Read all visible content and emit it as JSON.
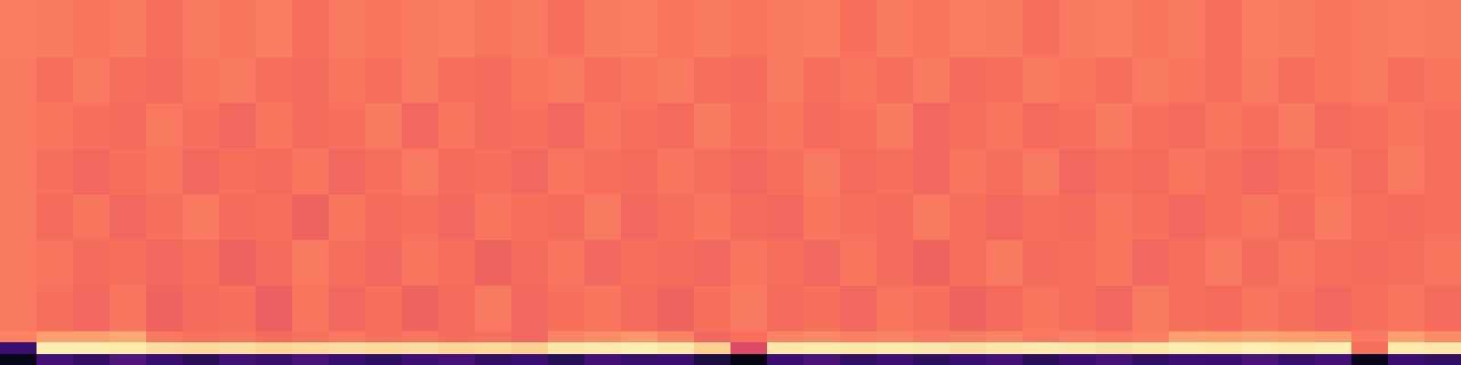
{
  "chart_data": {
    "type": "heatmap",
    "color": "magma",
    "tick_labels": false,
    "xlim": [
      0,
      40
    ],
    "ylim": [
      0,
      32
    ],
    "zlim": [
      0,
      1
    ],
    "y": [
      0,
      1,
      2,
      3,
      7,
      11,
      15,
      19,
      23,
      27,
      32
    ],
    "cells": [
      [
        0.04,
        0.22,
        0.18,
        0.25,
        0.2,
        0.16,
        0.22,
        0.19,
        0.24,
        0.2,
        0.17,
        0.21,
        0.23,
        0.18,
        0.2,
        0.15,
        0.22,
        0.19,
        0.2,
        0.12,
        0.03,
        0.2,
        0.24,
        0.18,
        0.21,
        0.17,
        0.2,
        0.22,
        0.16,
        0.2,
        0.23,
        0.18,
        0.21,
        0.2,
        0.24,
        0.19,
        0.22,
        0.05,
        0.2,
        0.18
      ],
      [
        0.2,
        0.97,
        0.97,
        0.96,
        0.93,
        0.92,
        0.93,
        0.91,
        0.92,
        0.93,
        0.92,
        0.93,
        0.91,
        0.92,
        0.9,
        0.95,
        0.96,
        0.97,
        0.95,
        0.9,
        0.6,
        0.95,
        0.96,
        0.95,
        0.96,
        0.95,
        0.94,
        0.95,
        0.96,
        0.95,
        0.94,
        0.95,
        0.97,
        0.96,
        0.97,
        0.96,
        0.97,
        0.7,
        0.96,
        0.95
      ],
      [
        0.74,
        0.8,
        0.8,
        0.82,
        0.72,
        0.7,
        0.71,
        0.69,
        0.7,
        0.72,
        0.7,
        0.71,
        0.69,
        0.7,
        0.68,
        0.74,
        0.76,
        0.78,
        0.74,
        0.68,
        0.7,
        0.74,
        0.75,
        0.73,
        0.74,
        0.72,
        0.73,
        0.74,
        0.72,
        0.73,
        0.72,
        0.73,
        0.8,
        0.8,
        0.81,
        0.8,
        0.79,
        0.72,
        0.8,
        0.76
      ],
      [
        0.72,
        0.7,
        0.68,
        0.71,
        0.67,
        0.69,
        0.7,
        0.66,
        0.71,
        0.68,
        0.7,
        0.67,
        0.69,
        0.72,
        0.68,
        0.7,
        0.71,
        0.69,
        0.67,
        0.7,
        0.72,
        0.69,
        0.7,
        0.68,
        0.71,
        0.7,
        0.67,
        0.69,
        0.71,
        0.7,
        0.68,
        0.72,
        0.7,
        0.69,
        0.71,
        0.7,
        0.68,
        0.7,
        0.71,
        0.69
      ],
      [
        0.72,
        0.71,
        0.69,
        0.7,
        0.68,
        0.7,
        0.67,
        0.69,
        0.72,
        0.7,
        0.68,
        0.71,
        0.7,
        0.67,
        0.69,
        0.71,
        0.68,
        0.7,
        0.69,
        0.68,
        0.71,
        0.7,
        0.68,
        0.71,
        0.69,
        0.67,
        0.7,
        0.72,
        0.69,
        0.7,
        0.71,
        0.68,
        0.7,
        0.72,
        0.69,
        0.71,
        0.7,
        0.69,
        0.7,
        0.71
      ],
      [
        0.72,
        0.69,
        0.71,
        0.68,
        0.7,
        0.72,
        0.69,
        0.7,
        0.67,
        0.71,
        0.69,
        0.7,
        0.68,
        0.71,
        0.7,
        0.69,
        0.72,
        0.68,
        0.7,
        0.71,
        0.69,
        0.68,
        0.71,
        0.7,
        0.69,
        0.72,
        0.7,
        0.68,
        0.7,
        0.69,
        0.71,
        0.7,
        0.68,
        0.7,
        0.71,
        0.69,
        0.72,
        0.7,
        0.69,
        0.7
      ],
      [
        0.72,
        0.7,
        0.68,
        0.7,
        0.71,
        0.68,
        0.7,
        0.69,
        0.71,
        0.68,
        0.7,
        0.72,
        0.69,
        0.7,
        0.68,
        0.71,
        0.7,
        0.69,
        0.71,
        0.7,
        0.68,
        0.7,
        0.72,
        0.69,
        0.7,
        0.68,
        0.71,
        0.7,
        0.72,
        0.68,
        0.7,
        0.69,
        0.71,
        0.7,
        0.68,
        0.7,
        0.71,
        0.69,
        0.72,
        0.7
      ],
      [
        0.72,
        0.71,
        0.7,
        0.69,
        0.72,
        0.7,
        0.68,
        0.71,
        0.69,
        0.7,
        0.72,
        0.68,
        0.71,
        0.69,
        0.7,
        0.68,
        0.71,
        0.7,
        0.69,
        0.72,
        0.7,
        0.71,
        0.69,
        0.7,
        0.72,
        0.68,
        0.7,
        0.71,
        0.69,
        0.7,
        0.72,
        0.7,
        0.69,
        0.71,
        0.7,
        0.72,
        0.69,
        0.7,
        0.71,
        0.7
      ],
      [
        0.72,
        0.7,
        0.72,
        0.7,
        0.69,
        0.71,
        0.72,
        0.7,
        0.69,
        0.71,
        0.7,
        0.72,
        0.7,
        0.69,
        0.71,
        0.72,
        0.7,
        0.71,
        0.72,
        0.7,
        0.69,
        0.72,
        0.7,
        0.71,
        0.7,
        0.72,
        0.69,
        0.7,
        0.72,
        0.71,
        0.7,
        0.72,
        0.71,
        0.7,
        0.72,
        0.7,
        0.71,
        0.72,
        0.7,
        0.71
      ],
      [
        0.73,
        0.72,
        0.71,
        0.72,
        0.7,
        0.72,
        0.71,
        0.73,
        0.7,
        0.72,
        0.71,
        0.72,
        0.73,
        0.71,
        0.72,
        0.7,
        0.72,
        0.73,
        0.71,
        0.72,
        0.71,
        0.72,
        0.73,
        0.7,
        0.72,
        0.71,
        0.73,
        0.72,
        0.7,
        0.72,
        0.73,
        0.71,
        0.72,
        0.7,
        0.73,
        0.72,
        0.71,
        0.72,
        0.73,
        0.72
      ]
    ]
  }
}
